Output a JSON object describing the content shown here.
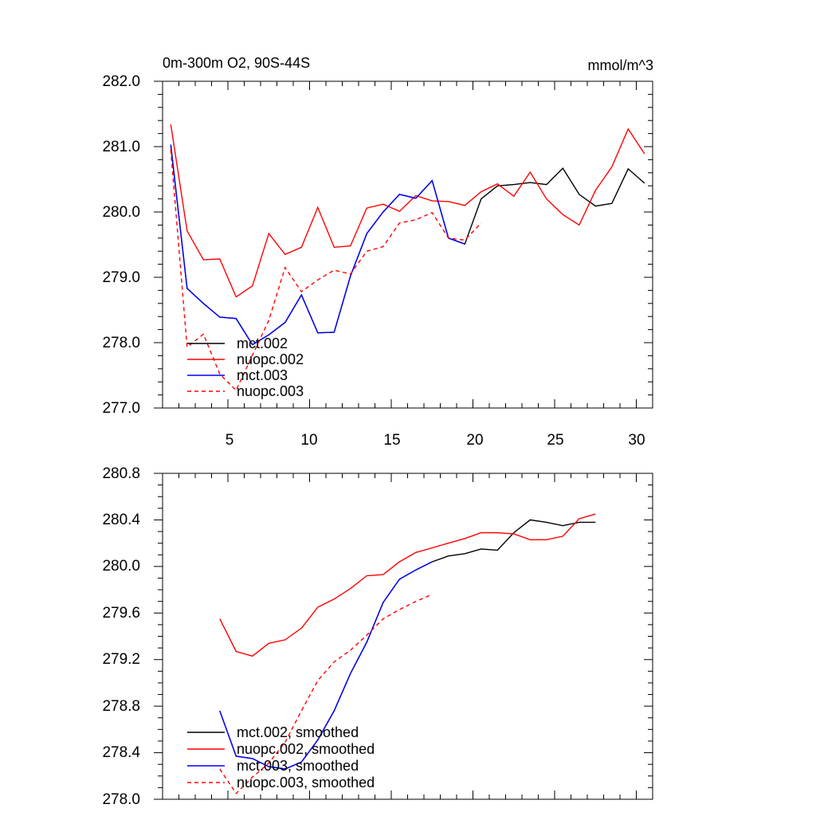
{
  "chart_data": [
    {
      "type": "line",
      "title_left": "0m-300m O2, 90S-44S",
      "title_right": "mmol/m^3",
      "xlim": [
        1,
        31
      ],
      "ylim": [
        277.0,
        282.0
      ],
      "xticks": [
        5,
        10,
        15,
        20,
        25,
        30
      ],
      "xtick_labels": [
        "5",
        "10",
        "15",
        "20",
        "25",
        "30"
      ],
      "yticks": [
        277.0,
        278.0,
        279.0,
        280.0,
        281.0,
        282.0
      ],
      "ytick_labels": [
        "277.0",
        "278.0",
        "279.0",
        "280.0",
        "281.0",
        "282.0"
      ],
      "legend_position": "lower-left",
      "series": [
        {
          "name": "mct.002",
          "color": "#000000",
          "dash": "solid",
          "x": [
            1.5,
            2.5,
            3.5,
            4.5,
            5.5,
            6.5,
            7.5,
            8.5,
            9.5,
            10.5,
            11.5,
            12.5,
            13.5,
            14.5,
            15.5,
            16.5,
            17.5,
            18.5,
            19.5,
            20.5,
            21.5,
            22.5,
            23.5,
            24.5,
            25.5,
            26.5,
            27.5,
            28.5,
            29.5,
            30.5
          ],
          "y": [
            281.02,
            278.83,
            278.6,
            278.39,
            278.37,
            277.97,
            278.12,
            278.31,
            278.73,
            278.15,
            278.16,
            279.02,
            279.67,
            280.0,
            280.27,
            280.21,
            280.48,
            279.6,
            279.51,
            280.2,
            280.4,
            280.42,
            280.45,
            280.42,
            280.67,
            280.27,
            280.09,
            280.13,
            280.66,
            280.44
          ]
        },
        {
          "name": "nuopc.002",
          "color": "#ff0000",
          "dash": "solid",
          "x": [
            1.5,
            2.5,
            3.5,
            4.5,
            5.5,
            6.5,
            7.5,
            8.5,
            9.5,
            10.5,
            11.5,
            12.5,
            13.5,
            14.5,
            15.5,
            16.5,
            17.5,
            18.5,
            19.5,
            20.5,
            21.5,
            22.5,
            23.5,
            24.5,
            25.5,
            26.5,
            27.5,
            28.5,
            29.5,
            30.5
          ],
          "y": [
            281.34,
            279.71,
            279.27,
            279.28,
            278.7,
            278.87,
            279.67,
            279.35,
            279.46,
            280.07,
            279.46,
            279.48,
            280.06,
            280.12,
            280.01,
            280.25,
            280.17,
            280.16,
            280.1,
            280.31,
            280.43,
            280.24,
            280.61,
            280.2,
            279.96,
            279.8,
            280.33,
            280.69,
            281.27,
            280.89
          ]
        },
        {
          "name": "mct.003",
          "color": "#0000ff",
          "dash": "solid",
          "x": [
            1.5,
            2.5,
            3.5,
            4.5,
            5.5,
            6.5,
            7.5,
            8.5,
            9.5,
            10.5,
            11.5,
            12.5,
            13.5,
            14.5,
            15.5,
            16.5,
            17.5,
            18.5,
            19.5
          ],
          "y": [
            281.03,
            278.83,
            278.6,
            278.39,
            278.37,
            277.97,
            278.12,
            278.31,
            278.73,
            278.15,
            278.16,
            279.02,
            279.67,
            280.0,
            280.27,
            280.21,
            280.48,
            279.6,
            279.51
          ]
        },
        {
          "name": "nuopc.003",
          "color": "#ff0000",
          "dash": "dashed",
          "x": [
            1.5,
            2.5,
            3.5,
            4.5,
            5.5,
            6.5,
            7.5,
            8.5,
            9.5,
            10.5,
            11.5,
            12.5,
            13.5,
            14.5,
            15.5,
            16.5,
            17.5,
            18.5,
            19.5,
            20.5
          ],
          "y": [
            280.95,
            277.93,
            278.13,
            277.52,
            277.27,
            277.81,
            278.34,
            279.15,
            278.78,
            278.96,
            279.11,
            279.05,
            279.4,
            279.47,
            279.83,
            279.88,
            279.99,
            279.6,
            279.57,
            279.83
          ]
        }
      ]
    },
    {
      "type": "line",
      "xlim": [
        1,
        31
      ],
      "ylim": [
        278.0,
        280.8
      ],
      "yticks": [
        278.0,
        278.4,
        278.8,
        279.2,
        279.6,
        280.0,
        280.4,
        280.8
      ],
      "ytick_labels": [
        "278.0",
        "278.4",
        "278.8",
        "279.2",
        "279.6",
        "280.0",
        "280.4",
        "280.8"
      ],
      "legend_position": "lower-left",
      "series": [
        {
          "name": "mct.002, smoothed",
          "color": "#000000",
          "dash": "solid",
          "x": [
            4.5,
            5.5,
            6.5,
            7.5,
            8.5,
            9.5,
            10.5,
            11.5,
            12.5,
            13.5,
            14.5,
            15.5,
            16.5,
            17.5,
            18.5,
            19.5,
            20.5,
            21.5,
            22.5,
            23.5,
            24.5,
            25.5,
            26.5,
            27.5
          ],
          "y": [
            278.76,
            278.37,
            278.35,
            278.28,
            278.26,
            278.32,
            278.51,
            278.76,
            279.08,
            279.35,
            279.69,
            279.89,
            279.97,
            280.04,
            280.09,
            280.11,
            280.15,
            280.14,
            280.29,
            280.4,
            280.38,
            280.35,
            280.38,
            280.38
          ]
        },
        {
          "name": "nuopc.002, smoothed",
          "color": "#ff0000",
          "dash": "solid",
          "x": [
            4.5,
            5.5,
            6.5,
            7.5,
            8.5,
            9.5,
            10.5,
            11.5,
            12.5,
            13.5,
            14.5,
            15.5,
            16.5,
            17.5,
            18.5,
            19.5,
            20.5,
            21.5,
            22.5,
            23.5,
            24.5,
            25.5,
            26.5,
            27.5
          ],
          "y": [
            279.55,
            279.27,
            279.23,
            279.34,
            279.37,
            279.47,
            279.65,
            279.72,
            279.81,
            279.92,
            279.93,
            280.04,
            280.12,
            280.16,
            280.2,
            280.24,
            280.29,
            280.29,
            280.28,
            280.23,
            280.23,
            280.26,
            280.41,
            280.45
          ]
        },
        {
          "name": "mct.003, smoothed",
          "color": "#0000ff",
          "dash": "solid",
          "x": [
            4.5,
            5.5,
            6.5,
            7.5,
            8.5,
            9.5,
            10.5,
            11.5,
            12.5,
            13.5,
            14.5,
            15.5,
            16.5,
            17.5
          ],
          "y": [
            278.76,
            278.37,
            278.35,
            278.28,
            278.26,
            278.32,
            278.51,
            278.76,
            279.08,
            279.35,
            279.69,
            279.89,
            279.97,
            280.04
          ]
        },
        {
          "name": "nuopc.003, smoothed",
          "color": "#ff0000",
          "dash": "dashed",
          "x": [
            4.5,
            5.5,
            6.5,
            7.5,
            8.5,
            9.5,
            10.5,
            11.5,
            12.5,
            13.5,
            14.5,
            15.5,
            16.5,
            17.5
          ],
          "y": [
            278.26,
            278.05,
            278.19,
            278.31,
            278.49,
            278.76,
            279.02,
            279.18,
            279.28,
            279.41,
            279.55,
            279.63,
            279.7,
            279.76
          ]
        }
      ]
    }
  ]
}
